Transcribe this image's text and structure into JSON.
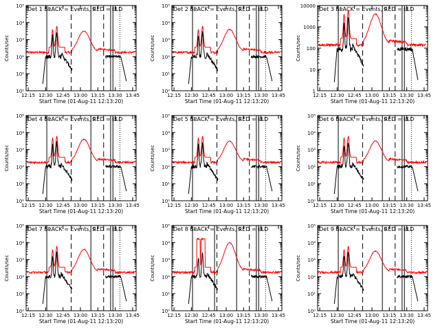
{
  "figure": {
    "background": "#ffffff",
    "axis_color": "#000000"
  },
  "chart_data": [
    {
      "type": "line",
      "title": "Det 1 BLACK = Events, RED = LLD",
      "xlabel": "Start Time (01-Aug-11 12:13:20)",
      "ylabel": "Counts/sec",
      "y_scale": "log",
      "ylim": [
        1,
        100000
      ],
      "x_tick_labels": [
        "12:15",
        "12:30",
        "12:45",
        "13:00",
        "13:15",
        "13:30",
        "13:45"
      ],
      "y_tick_labels": [
        "10⁰",
        "10¹",
        "10²",
        "10³",
        "10⁴",
        "10⁵"
      ],
      "markers": {
        "solid": [
          "12:31",
          "13:09",
          "13:26",
          "13:28"
        ],
        "dashed": [
          "12:52",
          "13:20"
        ],
        "dotted": [
          "13:34"
        ]
      },
      "marker_labels": [
        "P",
        "S",
        "F",
        "E"
      ],
      "series": [
        {
          "name": "Events",
          "color": "#000000",
          "peaks": [
            [
              12.6,
              3.2
            ],
            [
              12.66,
              3.4
            ]
          ]
        },
        {
          "name": "LLD",
          "color": "#ff0000",
          "peaks": [
            [
              12.6,
              3.3
            ],
            [
              12.66,
              3.5
            ],
            [
              13.05,
              3.5
            ]
          ]
        }
      ]
    },
    {
      "type": "line",
      "title": "Det 2 BLACK = Events, RED = LLD",
      "xlabel": "Start Time (01-Aug-11 12:13:20)",
      "ylabel": "Counts/sec",
      "y_scale": "log",
      "ylim": [
        1,
        100000
      ],
      "x_tick_labels": [
        "12:15",
        "12:30",
        "12:45",
        "13:00",
        "13:15",
        "13:30",
        "13:45"
      ],
      "y_tick_labels": [
        "10⁰",
        "10¹",
        "10²",
        "10³",
        "10⁴",
        "10⁵"
      ],
      "markers": {
        "solid": [
          "12:31",
          "13:09",
          "13:26",
          "13:28"
        ],
        "dashed": [
          "12:52",
          "13:20"
        ],
        "dotted": [
          "13:34"
        ]
      },
      "marker_labels": [
        "P",
        "S",
        "F",
        "E"
      ],
      "series": [
        {
          "name": "Events",
          "color": "#000000",
          "peaks": [
            [
              12.6,
              3.2
            ],
            [
              12.66,
              3.4
            ]
          ]
        },
        {
          "name": "LLD",
          "color": "#ff0000",
          "peaks": [
            [
              12.6,
              3.3
            ],
            [
              12.66,
              3.5
            ],
            [
              13.05,
              3.6
            ]
          ]
        }
      ]
    },
    {
      "type": "line",
      "title": "Det 3 BLACK = Events, RED = LLD",
      "xlabel": "Start Time (01-Aug-11 12:13:20)",
      "ylabel": "Counts/sec",
      "y_scale": "log",
      "ylim": [
        1,
        10000
      ],
      "x_tick_labels": [
        "12:15",
        "12:30",
        "12:45",
        "13:00",
        "13:15",
        "13:30",
        "13:45"
      ],
      "y_tick_labels": [
        "1",
        "10",
        "100",
        "1000",
        "10000"
      ],
      "markers": {
        "solid": [
          "12:31",
          "13:09",
          "13:26",
          "13:28"
        ],
        "dashed": [
          "12:52",
          "13:20"
        ],
        "dotted": [
          "13:34"
        ]
      },
      "marker_labels": [
        "P",
        "S",
        "F",
        "E"
      ],
      "series": [
        {
          "name": "Events",
          "color": "#000000",
          "peaks": [
            [
              12.6,
              3.2
            ],
            [
              12.66,
              3.4
            ]
          ]
        },
        {
          "name": "LLD",
          "color": "#ff0000",
          "peaks": [
            [
              12.6,
              3.3
            ],
            [
              12.66,
              3.5
            ],
            [
              13.05,
              3.6
            ]
          ]
        }
      ]
    },
    {
      "type": "line",
      "title": "Det 4 BLACK = Events, RED = LLD",
      "xlabel": "Start Time (01-Aug-11 12:13:20)",
      "ylabel": "Counts/sec",
      "y_scale": "log",
      "ylim": [
        1,
        100000
      ],
      "x_tick_labels": [
        "12:15",
        "12:30",
        "12:45",
        "13:00",
        "13:15",
        "13:30",
        "13:45"
      ],
      "y_tick_labels": [
        "10⁰",
        "10¹",
        "10²",
        "10³",
        "10⁴",
        "10⁵"
      ],
      "markers": {
        "solid": [
          "12:31",
          "13:09",
          "13:26",
          "13:28"
        ],
        "dashed": [
          "12:52",
          "13:20"
        ],
        "dotted": [
          "13:34"
        ]
      },
      "marker_labels": [
        "P",
        "S",
        "F",
        "E"
      ],
      "series": [
        {
          "name": "Events",
          "color": "#000000",
          "peaks": [
            [
              12.6,
              3.3
            ],
            [
              12.66,
              3.4
            ]
          ]
        },
        {
          "name": "LLD",
          "color": "#ff0000",
          "peaks": [
            [
              12.6,
              3.4
            ],
            [
              12.66,
              3.5
            ],
            [
              13.05,
              3.6
            ]
          ]
        }
      ]
    },
    {
      "type": "line",
      "title": "Det 5 BLACK = Events, RED = LLD",
      "xlabel": "Start Time (01-Aug-11 12:13:20)",
      "ylabel": "Counts/sec",
      "y_scale": "log",
      "ylim": [
        1,
        100000
      ],
      "x_tick_labels": [
        "12:15",
        "12:30",
        "12:45",
        "13:00",
        "13:15",
        "13:30",
        "13:45"
      ],
      "y_tick_labels": [
        "10⁰",
        "10¹",
        "10²",
        "10³",
        "10⁴",
        "10⁵"
      ],
      "markers": {
        "solid": [
          "12:31",
          "13:09",
          "13:26",
          "13:28"
        ],
        "dashed": [
          "12:52",
          "13:20"
        ],
        "dotted": [
          "13:34"
        ]
      },
      "marker_labels": [
        "P",
        "S",
        "F",
        "E"
      ],
      "series": [
        {
          "name": "Events",
          "color": "#000000",
          "peaks": [
            [
              12.6,
              3.3
            ],
            [
              12.66,
              3.4
            ]
          ]
        },
        {
          "name": "LLD",
          "color": "#ff0000",
          "peaks": [
            [
              12.6,
              3.4
            ],
            [
              12.66,
              3.5
            ],
            [
              13.05,
              3.5
            ]
          ]
        }
      ]
    },
    {
      "type": "line",
      "title": "Det 6 BLACK = Events, RED = LLD",
      "xlabel": "Start Time (01-Aug-11 12:13:20)",
      "ylabel": "Counts/sec",
      "y_scale": "log",
      "ylim": [
        1,
        100000
      ],
      "x_tick_labels": [
        "12:15",
        "12:30",
        "12:45",
        "13:00",
        "13:15",
        "13:30",
        "13:45"
      ],
      "y_tick_labels": [
        "10⁰",
        "10¹",
        "10²",
        "10³",
        "10⁴",
        "10⁵"
      ],
      "markers": {
        "solid": [
          "12:31",
          "13:09",
          "13:26",
          "13:28"
        ],
        "dashed": [
          "12:52",
          "13:20"
        ],
        "dotted": [
          "13:34"
        ]
      },
      "marker_labels": [
        "P",
        "S",
        "F",
        "E"
      ],
      "series": [
        {
          "name": "Events",
          "color": "#000000",
          "peaks": [
            [
              12.6,
              3.3
            ],
            [
              12.66,
              3.4
            ]
          ]
        },
        {
          "name": "LLD",
          "color": "#ff0000",
          "peaks": [
            [
              12.6,
              3.4
            ],
            [
              12.66,
              3.5
            ],
            [
              13.05,
              3.5
            ]
          ]
        }
      ]
    },
    {
      "type": "line",
      "title": "Det 7 BLACK = Events, RED = LLD",
      "xlabel": "Start Time (01-Aug-11 12:13:20)",
      "ylabel": "Counts/sec",
      "y_scale": "log",
      "ylim": [
        1,
        100000
      ],
      "x_tick_labels": [
        "12:15",
        "12:30",
        "12:45",
        "13:00",
        "13:15",
        "13:30",
        "13:45"
      ],
      "y_tick_labels": [
        "10⁰",
        "10¹",
        "10²",
        "10³",
        "10⁴",
        "10⁵"
      ],
      "markers": {
        "solid": [
          "12:31",
          "13:09",
          "13:26",
          "13:28"
        ],
        "dashed": [
          "12:52",
          "13:20"
        ],
        "dotted": [
          "13:34"
        ]
      },
      "marker_labels": [
        "P",
        "S",
        "F",
        "E"
      ],
      "series": [
        {
          "name": "Events",
          "color": "#000000",
          "peaks": [
            [
              12.6,
              3.2
            ],
            [
              12.66,
              3.4
            ]
          ]
        },
        {
          "name": "LLD",
          "color": "#ff0000",
          "peaks": [
            [
              12.6,
              3.3
            ],
            [
              12.66,
              3.5
            ],
            [
              13.05,
              3.6
            ]
          ]
        }
      ]
    },
    {
      "type": "line",
      "title": "Det 8 BLACK = Events, RED = LLD",
      "xlabel": "Start Time (01-Aug-11 12:13:20)",
      "ylabel": "Counts/sec",
      "y_scale": "log",
      "ylim": [
        1,
        100000
      ],
      "x_tick_labels": [
        "12:15",
        "12:30",
        "12:45",
        "13:00",
        "13:15",
        "13:30",
        "13:45"
      ],
      "y_tick_labels": [
        "10⁰",
        "10¹",
        "10²",
        "10³",
        "10⁴",
        "10⁵"
      ],
      "markers": {
        "solid": [
          "12:31",
          "12:50",
          "13:09",
          "13:26",
          "13:28"
        ],
        "dashed": [
          "12:52",
          "13:20"
        ],
        "dotted": [
          "13:34"
        ]
      },
      "marker_labels": [
        "P",
        "S",
        "F",
        "E"
      ],
      "series": [
        {
          "name": "Events",
          "color": "#000000",
          "peaks": [
            [
              12.6,
              3.1
            ],
            [
              12.66,
              3.4
            ]
          ]
        },
        {
          "name": "LLD",
          "color": "#ff0000",
          "peaks": [
            [
              12.6,
              4.2
            ],
            [
              12.66,
              4.1
            ],
            [
              13.05,
              4.0
            ]
          ]
        }
      ]
    },
    {
      "type": "line",
      "title": "Det 9 BLACK = Events, RED = LLD",
      "xlabel": "Start Time (01-Aug-11 12:13:20)",
      "ylabel": "Counts/sec",
      "y_scale": "log",
      "ylim": [
        1,
        100000
      ],
      "x_tick_labels": [
        "12:15",
        "12:30",
        "12:45",
        "13:00",
        "13:15",
        "13:30",
        "13:45"
      ],
      "y_tick_labels": [
        "10⁰",
        "10¹",
        "10²",
        "10³",
        "10⁴",
        "10⁵"
      ],
      "markers": {
        "solid": [
          "12:31",
          "13:09",
          "13:26",
          "13:28"
        ],
        "dashed": [
          "12:52",
          "13:20"
        ],
        "dotted": [
          "13:34"
        ]
      },
      "marker_labels": [
        "P",
        "S",
        "F",
        "E"
      ],
      "series": [
        {
          "name": "Events",
          "color": "#000000",
          "peaks": [
            [
              12.6,
              3.2
            ],
            [
              12.66,
              3.4
            ]
          ]
        },
        {
          "name": "LLD",
          "color": "#ff0000",
          "peaks": [
            [
              12.6,
              3.3
            ],
            [
              12.66,
              3.5
            ],
            [
              13.05,
              3.5
            ]
          ]
        }
      ]
    }
  ]
}
